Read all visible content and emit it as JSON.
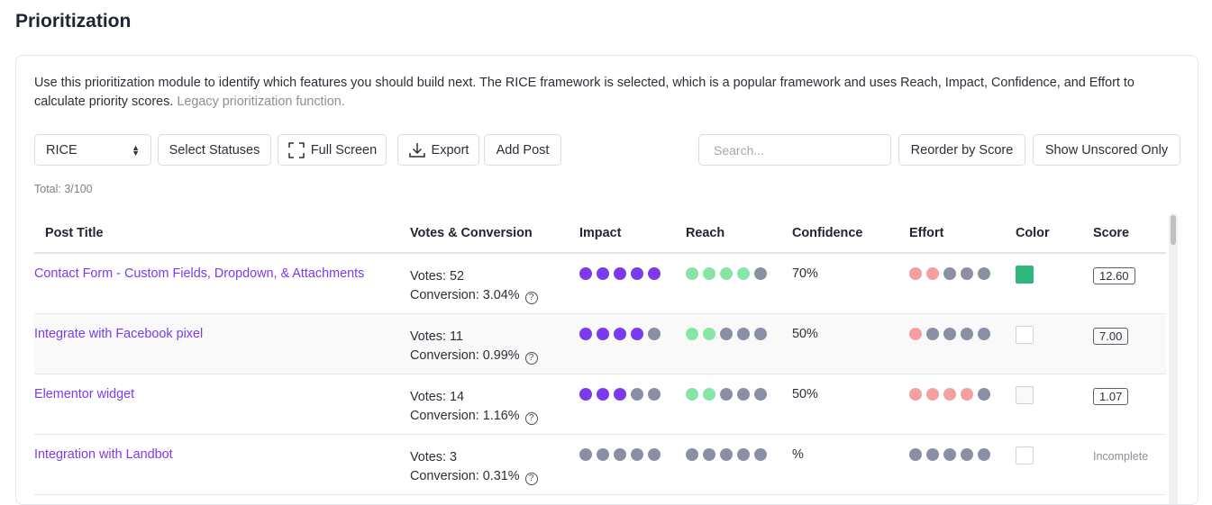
{
  "page": {
    "title": "Prioritization"
  },
  "intro": {
    "text": "Use this prioritization module to identify which features you should build next. The RICE framework is selected, which is a popular framework and uses Reach, Impact, Confidence, and Effort to calculate priority scores.",
    "link": "Legacy prioritization function."
  },
  "toolbar": {
    "framework": "RICE",
    "select_statuses": "Select Statuses",
    "full_screen": "Full Screen",
    "export": "Export",
    "add_post": "Add Post",
    "search_placeholder": "Search...",
    "reorder": "Reorder by Score",
    "show_unscored": "Show Unscored Only"
  },
  "total": "Total: 3/100",
  "colors": {
    "accent": "#7c3aed",
    "impact": "#7c3aed",
    "reach": "#86e6a6",
    "effort": "#f4a0a0",
    "empty_dot": "#8b8fa3",
    "green_swatch": "#2fb67c"
  },
  "table": {
    "headers": {
      "title": "Post Title",
      "votes": "Votes & Conversion",
      "impact": "Impact",
      "reach": "Reach",
      "confidence": "Confidence",
      "effort": "Effort",
      "color": "Color",
      "score": "Score"
    },
    "rows": [
      {
        "title": "Contact Form - Custom Fields, Dropdown, & Attachments",
        "votes": "Votes: 52",
        "conversion": "Conversion: 3.04%",
        "impact": 5,
        "reach": 4,
        "confidence": "70%",
        "effort": 2,
        "color": "#2fb67c",
        "score": "12.60"
      },
      {
        "title": "Integrate with Facebook pixel",
        "votes": "Votes: 11",
        "conversion": "Conversion: 0.99%",
        "impact": 4,
        "reach": 2,
        "confidence": "50%",
        "effort": 1,
        "color": "#ffffff",
        "score": "7.00"
      },
      {
        "title": "Elementor widget",
        "votes": "Votes: 14",
        "conversion": "Conversion: 1.16%",
        "impact": 3,
        "reach": 2,
        "confidence": "50%",
        "effort": 4,
        "color": "#f9f9f9",
        "score": "1.07"
      },
      {
        "title": "Integration with Landbot",
        "votes": "Votes: 3",
        "conversion": "Conversion: 0.31%",
        "impact": 0,
        "reach": 0,
        "confidence": "%",
        "effort": 0,
        "color": "#ffffff",
        "score": "Incomplete"
      }
    ]
  }
}
